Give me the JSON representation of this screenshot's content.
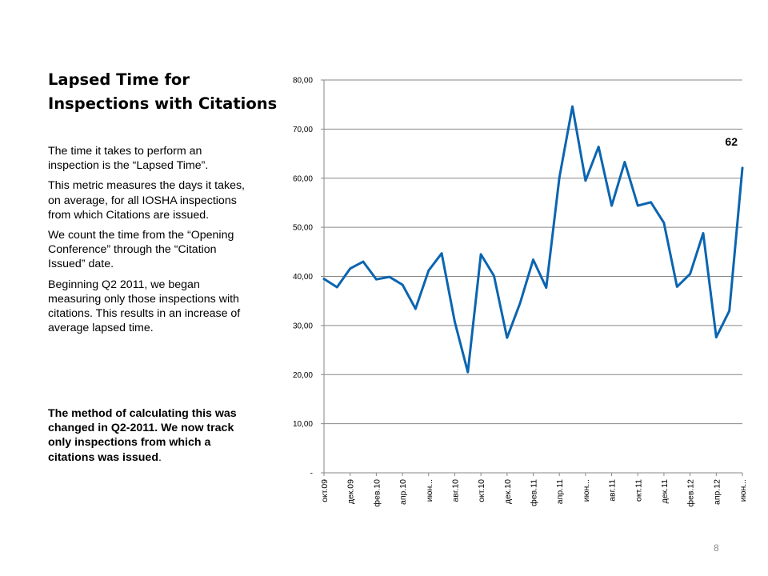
{
  "slide": {
    "title_lines": [
      "Lapsed Time for",
      "Inspections with Citations"
    ],
    "paragraphs": [
      "The time it takes to perform an inspection is the “Lapsed Time”.",
      "This metric measures the days it takes, on average, for all IOSHA inspections from which Citations are issued.",
      "We count the time from the “Opening Conference” through the “Citation Issued” date.",
      "Beginning Q2 2011, we began measuring only those inspections with citations.  This results in an increase of average lapsed time."
    ],
    "note": "The method of calculating this was changed in Q2-2011.  We now track only inspections from which a citations was issued",
    "note_period": ".",
    "page_number": "8"
  },
  "chart_data": {
    "type": "line",
    "ylim": [
      0,
      80
    ],
    "yticks": [
      0,
      10,
      20,
      30,
      40,
      50,
      60,
      70,
      80
    ],
    "ytick_labels": [
      "-",
      "10,00",
      "20,00",
      "30,00",
      "40,00",
      "50,00",
      "60,00",
      "70,00",
      "80,00"
    ],
    "x_tick_labels": [
      "окт.09",
      "дек.09",
      "фев.10",
      "апр.10",
      "июн...",
      "авг.10",
      "окт.10",
      "дек.10",
      "фев.11",
      "апр.11",
      "июн...",
      "авг.11",
      "окт.11",
      "дек.11",
      "фев.12",
      "апр.12",
      "июн..."
    ],
    "series": [
      {
        "color": "#0b65b0",
        "values": [
          39.5,
          37.8,
          41.6,
          43.0,
          39.4,
          39.9,
          38.3,
          33.4,
          41.2,
          44.7,
          30.8,
          20.5,
          44.5,
          40.1,
          27.5,
          34.6,
          43.4,
          37.7,
          60.1,
          74.6,
          59.5,
          66.4,
          54.4,
          63.3,
          54.4,
          55.1,
          50.9,
          37.9,
          40.5,
          48.8,
          27.6,
          33.0,
          62.1
        ]
      }
    ],
    "data_labels": [
      {
        "index": 32,
        "text": "62"
      }
    ],
    "grid": true,
    "legend": "none"
  }
}
